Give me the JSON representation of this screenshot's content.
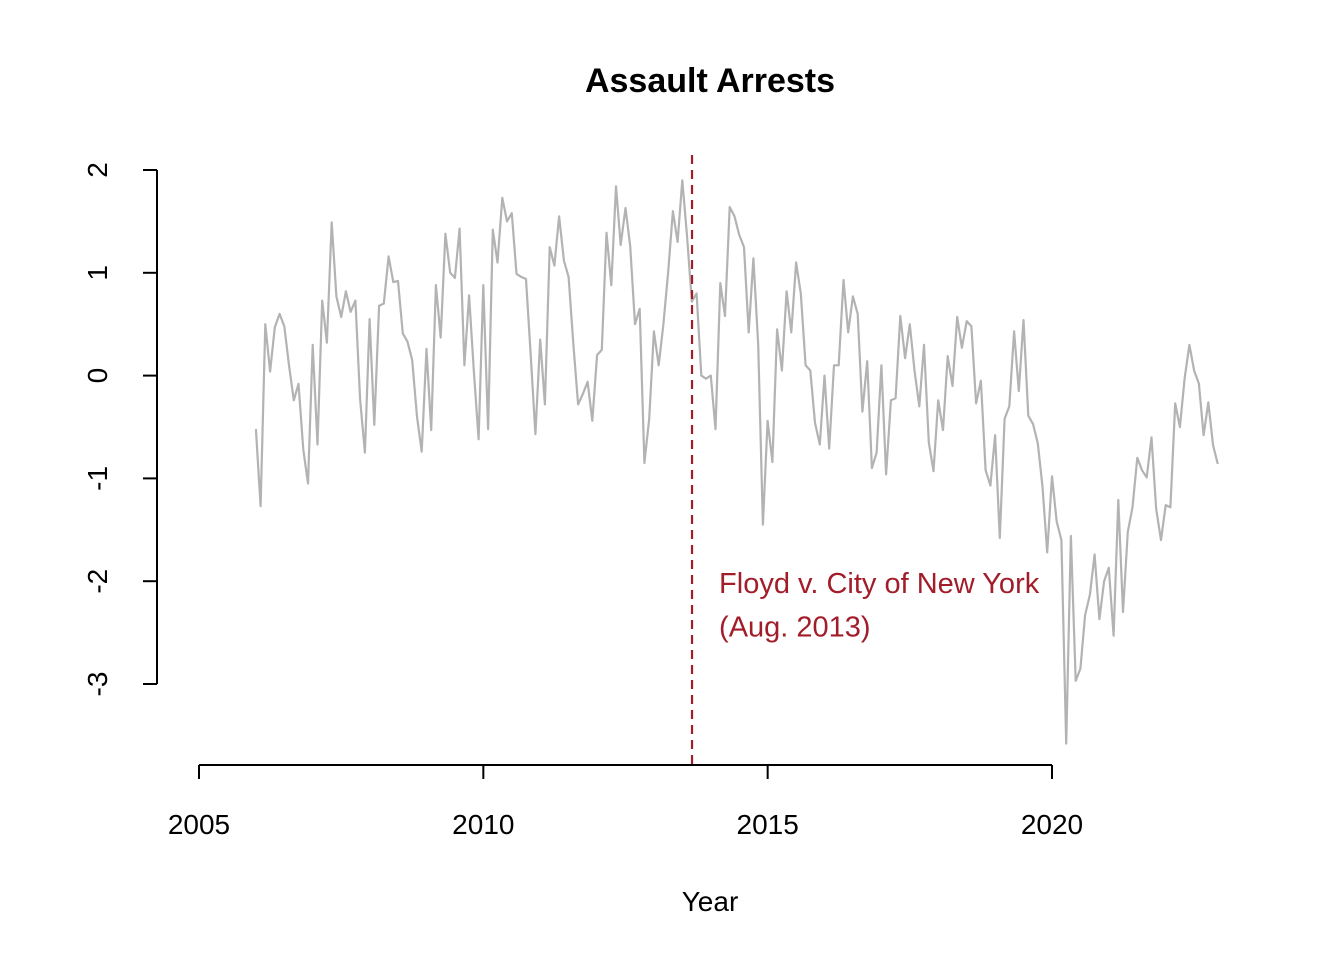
{
  "chart_data": {
    "type": "line",
    "title": "Assault Arrests",
    "xlabel": "Year",
    "ylabel": "",
    "xlim": [
      2005,
      2020
    ],
    "ylim": [
      -3,
      2
    ],
    "x_ticks": [
      "2005",
      "2010",
      "2015",
      "2020"
    ],
    "y_ticks": [
      "-3",
      "-2",
      "-1",
      "0",
      "1",
      "2"
    ],
    "grid": false,
    "legend": "none",
    "series": [
      {
        "color": "#b3b3b3",
        "x_start": 2006.0,
        "x_step": 0.08333,
        "values": [
          -0.52,
          -1.27,
          0.5,
          0.04,
          0.47,
          0.6,
          0.48,
          0.1,
          -0.24,
          -0.08,
          -0.72,
          -1.05,
          0.3,
          -0.67,
          0.73,
          0.32,
          1.49,
          0.77,
          0.57,
          0.82,
          0.62,
          0.73,
          -0.23,
          -0.75,
          0.55,
          -0.48,
          0.68,
          0.7,
          1.16,
          0.91,
          0.92,
          0.41,
          0.33,
          0.15,
          -0.4,
          -0.74,
          0.26,
          -0.53,
          0.88,
          0.37,
          1.38,
          1.0,
          0.95,
          1.43,
          0.1,
          0.78,
          0.05,
          -0.62,
          0.88,
          -0.52,
          1.42,
          1.1,
          1.73,
          1.5,
          1.58,
          0.99,
          0.96,
          0.94,
          0.2,
          -0.57,
          0.35,
          -0.28,
          1.25,
          1.07,
          1.55,
          1.12,
          0.96,
          0.3,
          -0.28,
          -0.18,
          -0.06,
          -0.44,
          0.2,
          0.25,
          1.39,
          0.88,
          1.84,
          1.27,
          1.63,
          1.26,
          0.5,
          0.65,
          -0.85,
          -0.42,
          0.43,
          0.1,
          0.5,
          1.0,
          1.6,
          1.3,
          1.9,
          1.35,
          0.72,
          0.8,
          0.0,
          -0.03,
          0.0,
          -0.52,
          0.9,
          0.58,
          1.64,
          1.55,
          1.37,
          1.25,
          0.42,
          1.14,
          0.3,
          -1.45,
          -0.44,
          -0.84,
          0.45,
          0.05,
          0.82,
          0.42,
          1.1,
          0.8,
          0.1,
          0.05,
          -0.46,
          -0.67,
          0.0,
          -0.71,
          0.1,
          0.1,
          0.93,
          0.42,
          0.77,
          0.6,
          -0.35,
          0.14,
          -0.9,
          -0.75,
          0.1,
          -0.96,
          -0.24,
          -0.22,
          0.58,
          0.17,
          0.5,
          0.05,
          -0.3,
          0.3,
          -0.65,
          -0.93,
          -0.24,
          -0.53,
          0.19,
          -0.1,
          0.57,
          0.27,
          0.53,
          0.48,
          -0.27,
          -0.05,
          -0.92,
          -1.07,
          -0.58,
          -1.58,
          -0.42,
          -0.3,
          0.43,
          -0.15,
          0.54,
          -0.39,
          -0.47,
          -0.66,
          -1.08,
          -1.72,
          -0.98,
          -1.42,
          -1.6,
          -3.58,
          -1.56,
          -2.97,
          -2.85,
          -2.33,
          -2.13,
          -1.74,
          -2.37,
          -2.0,
          -1.87,
          -2.53,
          -1.21,
          -2.3,
          -1.52,
          -1.28,
          -0.8,
          -0.92,
          -0.99,
          -0.6,
          -1.3,
          -1.6,
          -1.26,
          -1.28,
          -0.27,
          -0.5,
          -0.02,
          0.3,
          0.05,
          -0.08,
          -0.58,
          -0.26,
          -0.68,
          -0.86
        ]
      }
    ],
    "event_line": {
      "x": 2013.67,
      "color": "#a21d2a",
      "label_lines": [
        "Floyd v. City of New York",
        "(Aug. 2013)"
      ]
    }
  }
}
